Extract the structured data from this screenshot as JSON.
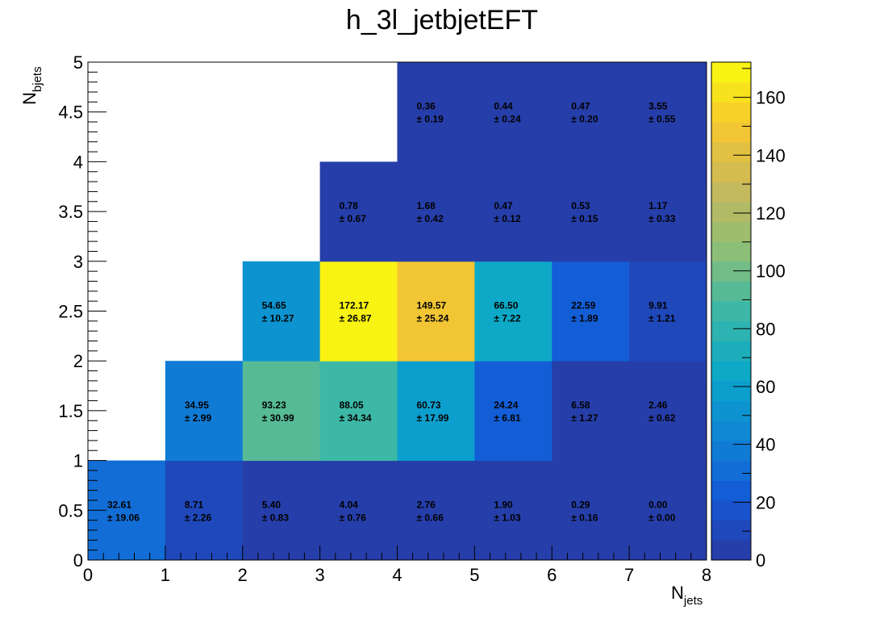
{
  "chart_data": {
    "type": "heatmap",
    "title": "h_3l_jetbjetEFT",
    "xlabel": {
      "main": "N",
      "sub": "jets"
    },
    "ylabel": {
      "main": "N",
      "sub": "bjets"
    },
    "xlim": [
      0,
      8
    ],
    "ylim": [
      0,
      5
    ],
    "x_ticks": [
      "0",
      "1",
      "2",
      "3",
      "4",
      "5",
      "6",
      "7",
      "8"
    ],
    "y_ticks": [
      "0",
      "0.5",
      "1",
      "1.5",
      "2",
      "2.5",
      "3",
      "3.5",
      "4",
      "4.5",
      "5"
    ],
    "x_bin_edges": [
      0,
      1,
      2,
      3,
      4,
      5,
      6,
      7,
      8
    ],
    "y_bin_edges": [
      0,
      1,
      2,
      3,
      4,
      5
    ],
    "zlim": [
      0,
      172.17
    ],
    "colorbar_ticks": [
      "0",
      "20",
      "40",
      "60",
      "80",
      "100",
      "120",
      "140",
      "160"
    ],
    "colormap_stops": [
      "#2a39a0",
      "#1459d6",
      "#0f86d5",
      "#0ba8c8",
      "#3db8a6",
      "#8ebf75",
      "#c9b85a",
      "#f6c72e",
      "#f9fb0e"
    ],
    "cells": [
      {
        "x": 0,
        "y": 0,
        "value": 32.61,
        "error": 19.06,
        "label": "32.61",
        "error_label": "± 19.06"
      },
      {
        "x": 1,
        "y": 0,
        "value": 8.71,
        "error": 2.26,
        "label": "8.71",
        "error_label": "± 2.26"
      },
      {
        "x": 2,
        "y": 0,
        "value": 5.4,
        "error": 0.83,
        "label": "5.40",
        "error_label": "± 0.83"
      },
      {
        "x": 3,
        "y": 0,
        "value": 4.04,
        "error": 0.76,
        "label": "4.04",
        "error_label": "± 0.76"
      },
      {
        "x": 4,
        "y": 0,
        "value": 2.76,
        "error": 0.66,
        "label": "2.76",
        "error_label": "± 0.66"
      },
      {
        "x": 5,
        "y": 0,
        "value": 1.9,
        "error": 1.03,
        "label": "1.90",
        "error_label": "± 1.03"
      },
      {
        "x": 6,
        "y": 0,
        "value": 0.29,
        "error": 0.16,
        "label": "0.29",
        "error_label": "± 0.16"
      },
      {
        "x": 7,
        "y": 0,
        "value": 0.0,
        "error": 0.0,
        "label": "0.00",
        "error_label": "± 0.00"
      },
      {
        "x": 1,
        "y": 1,
        "value": 34.95,
        "error": 2.99,
        "label": "34.95",
        "error_label": "± 2.99"
      },
      {
        "x": 2,
        "y": 1,
        "value": 93.23,
        "error": 30.99,
        "label": "93.23",
        "error_label": "± 30.99"
      },
      {
        "x": 3,
        "y": 1,
        "value": 88.05,
        "error": 34.34,
        "label": "88.05",
        "error_label": "± 34.34"
      },
      {
        "x": 4,
        "y": 1,
        "value": 60.73,
        "error": 17.99,
        "label": "60.73",
        "error_label": "± 17.99"
      },
      {
        "x": 5,
        "y": 1,
        "value": 24.24,
        "error": 6.81,
        "label": "24.24",
        "error_label": "± 6.81"
      },
      {
        "x": 6,
        "y": 1,
        "value": 6.58,
        "error": 1.27,
        "label": "6.58",
        "error_label": "± 1.27"
      },
      {
        "x": 7,
        "y": 1,
        "value": 2.46,
        "error": 0.62,
        "label": "2.46",
        "error_label": "± 0.62"
      },
      {
        "x": 2,
        "y": 2,
        "value": 54.65,
        "error": 10.27,
        "label": "54.65",
        "error_label": "± 10.27"
      },
      {
        "x": 3,
        "y": 2,
        "value": 172.17,
        "error": 26.87,
        "label": "172.17",
        "error_label": "± 26.87"
      },
      {
        "x": 4,
        "y": 2,
        "value": 149.57,
        "error": 25.24,
        "label": "149.57",
        "error_label": "± 25.24"
      },
      {
        "x": 5,
        "y": 2,
        "value": 66.5,
        "error": 7.22,
        "label": "66.50",
        "error_label": "± 7.22"
      },
      {
        "x": 6,
        "y": 2,
        "value": 22.59,
        "error": 1.89,
        "label": "22.59",
        "error_label": "± 1.89"
      },
      {
        "x": 7,
        "y": 2,
        "value": 9.91,
        "error": 1.21,
        "label": "9.91",
        "error_label": "± 1.21"
      },
      {
        "x": 3,
        "y": 3,
        "value": 0.78,
        "error": 0.67,
        "label": "0.78",
        "error_label": "± 0.67"
      },
      {
        "x": 4,
        "y": 3,
        "value": 1.68,
        "error": 0.42,
        "label": "1.68",
        "error_label": "± 0.42"
      },
      {
        "x": 5,
        "y": 3,
        "value": 0.47,
        "error": 0.12,
        "label": "0.47",
        "error_label": "± 0.12"
      },
      {
        "x": 6,
        "y": 3,
        "value": 0.53,
        "error": 0.15,
        "label": "0.53",
        "error_label": "± 0.15"
      },
      {
        "x": 7,
        "y": 3,
        "value": 1.17,
        "error": 0.33,
        "label": "1.17",
        "error_label": "± 0.33"
      },
      {
        "x": 4,
        "y": 4,
        "value": 0.36,
        "error": 0.19,
        "label": "0.36",
        "error_label": "± 0.19"
      },
      {
        "x": 5,
        "y": 4,
        "value": 0.44,
        "error": 0.24,
        "label": "0.44",
        "error_label": "± 0.24"
      },
      {
        "x": 6,
        "y": 4,
        "value": 0.47,
        "error": 0.2,
        "label": "0.47",
        "error_label": "± 0.20"
      },
      {
        "x": 7,
        "y": 4,
        "value": 3.55,
        "error": 0.55,
        "label": "3.55",
        "error_label": "± 0.55"
      }
    ]
  }
}
